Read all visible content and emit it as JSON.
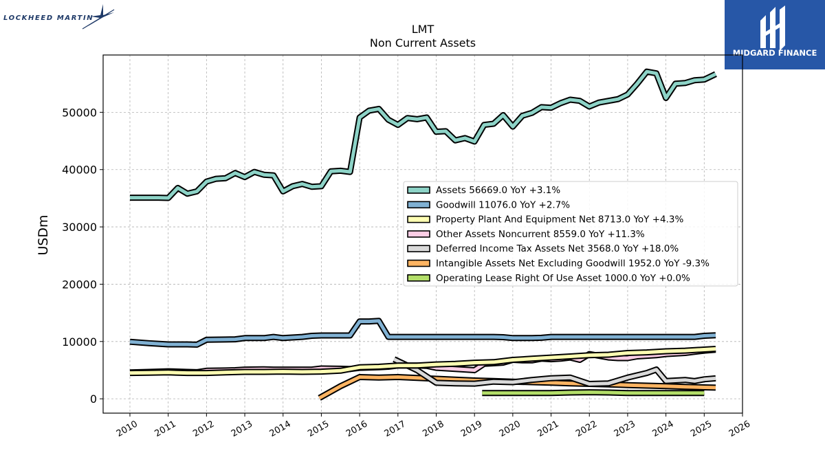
{
  "brand": {
    "left_logo_text": "LOCKHEED MARTIN",
    "right_logo_text": "MIDGARD FINANCE",
    "right_logo_color": "#2757a7"
  },
  "chart_data": {
    "type": "line",
    "title": "LMT",
    "subtitle": "Non Current  Assets",
    "ylabel": "USDm",
    "xlabel": "",
    "xlim": [
      2009.3,
      2026
    ],
    "ylim": [
      -2500,
      60000
    ],
    "grid": true,
    "legend_position": "center-right",
    "x_ticks": [
      "2010",
      "2011",
      "2012",
      "2013",
      "2014",
      "2015",
      "2016",
      "2017",
      "2018",
      "2019",
      "2020",
      "2021",
      "2022",
      "2023",
      "2024",
      "2025",
      "2026"
    ],
    "y_ticks": [
      "0",
      "10000",
      "20000",
      "30000",
      "40000",
      "50000"
    ],
    "series": [
      {
        "name": "Assets",
        "legend": "Assets  56669.0 YoY +3.1%",
        "color": "#8dd3c7",
        "points": [
          [
            2010.0,
            35100
          ],
          [
            2010.25,
            35100
          ],
          [
            2010.5,
            35100
          ],
          [
            2010.75,
            35100
          ],
          [
            2011.0,
            35050
          ],
          [
            2011.25,
            36800
          ],
          [
            2011.5,
            35800
          ],
          [
            2011.75,
            36200
          ],
          [
            2012.0,
            37900
          ],
          [
            2012.25,
            38400
          ],
          [
            2012.5,
            38500
          ],
          [
            2012.75,
            39400
          ],
          [
            2013.0,
            38700
          ],
          [
            2013.25,
            39600
          ],
          [
            2013.5,
            39100
          ],
          [
            2013.75,
            39000
          ],
          [
            2014.0,
            36200
          ],
          [
            2014.25,
            37100
          ],
          [
            2014.5,
            37500
          ],
          [
            2014.75,
            37000
          ],
          [
            2015.0,
            37100
          ],
          [
            2015.25,
            39700
          ],
          [
            2015.5,
            39800
          ],
          [
            2015.75,
            39600
          ],
          [
            2016.0,
            49100
          ],
          [
            2016.25,
            50300
          ],
          [
            2016.5,
            50600
          ],
          [
            2016.75,
            48700
          ],
          [
            2017.0,
            47800
          ],
          [
            2017.25,
            49000
          ],
          [
            2017.5,
            48800
          ],
          [
            2017.75,
            49100
          ],
          [
            2018.0,
            46600
          ],
          [
            2018.25,
            46700
          ],
          [
            2018.5,
            45100
          ],
          [
            2018.75,
            45500
          ],
          [
            2019.0,
            44900
          ],
          [
            2019.25,
            47800
          ],
          [
            2019.5,
            48000
          ],
          [
            2019.75,
            49500
          ],
          [
            2020.0,
            47500
          ],
          [
            2020.25,
            49400
          ],
          [
            2020.5,
            49900
          ],
          [
            2020.75,
            50900
          ],
          [
            2021.0,
            50800
          ],
          [
            2021.25,
            51600
          ],
          [
            2021.5,
            52200
          ],
          [
            2021.75,
            52000
          ],
          [
            2022.0,
            51000
          ],
          [
            2022.25,
            51700
          ],
          [
            2022.5,
            52000
          ],
          [
            2022.75,
            52300
          ],
          [
            2023.0,
            53100
          ],
          [
            2023.25,
            55000
          ],
          [
            2023.5,
            57100
          ],
          [
            2023.75,
            56800
          ],
          [
            2024.0,
            52500
          ],
          [
            2024.25,
            55000
          ],
          [
            2024.5,
            55100
          ],
          [
            2024.75,
            55600
          ],
          [
            2025.0,
            55700
          ],
          [
            2025.3,
            56669
          ]
        ]
      },
      {
        "name": "Goodwill",
        "legend": "Goodwill  11076.0 YoY +2.7%",
        "color": "#80b1d3",
        "points": [
          [
            2010.0,
            9950
          ],
          [
            2010.5,
            9700
          ],
          [
            2011.0,
            9500
          ],
          [
            2011.5,
            9500
          ],
          [
            2011.75,
            9450
          ],
          [
            2012.0,
            10300
          ],
          [
            2012.5,
            10350
          ],
          [
            2012.75,
            10380
          ],
          [
            2013.0,
            10600
          ],
          [
            2013.5,
            10600
          ],
          [
            2013.75,
            10800
          ],
          [
            2014.0,
            10600
          ],
          [
            2014.5,
            10800
          ],
          [
            2014.75,
            11000
          ],
          [
            2015.0,
            11050
          ],
          [
            2015.5,
            11050
          ],
          [
            2015.75,
            11050
          ],
          [
            2016.0,
            13500
          ],
          [
            2016.25,
            13500
          ],
          [
            2016.5,
            13600
          ],
          [
            2016.75,
            10800
          ],
          [
            2017.0,
            10800
          ],
          [
            2017.5,
            10800
          ],
          [
            2018.0,
            10800
          ],
          [
            2018.5,
            10800
          ],
          [
            2019.0,
            10800
          ],
          [
            2019.5,
            10800
          ],
          [
            2019.75,
            10750
          ],
          [
            2020.0,
            10600
          ],
          [
            2020.5,
            10600
          ],
          [
            2020.75,
            10650
          ],
          [
            2021.0,
            10800
          ],
          [
            2021.5,
            10800
          ],
          [
            2022.0,
            10800
          ],
          [
            2022.5,
            10800
          ],
          [
            2023.0,
            10800
          ],
          [
            2023.5,
            10800
          ],
          [
            2024.0,
            10800
          ],
          [
            2024.5,
            10800
          ],
          [
            2024.75,
            10800
          ],
          [
            2025.0,
            11000
          ],
          [
            2025.3,
            11076
          ]
        ]
      },
      {
        "name": "Property Plant And Equipment Net",
        "legend": "Property Plant And Equipment Net  8713.0 YoY +4.3%",
        "color": "#ffffb3",
        "points": [
          [
            2010.0,
            4500
          ],
          [
            2010.5,
            4550
          ],
          [
            2011.0,
            4600
          ],
          [
            2011.5,
            4500
          ],
          [
            2012.0,
            4500
          ],
          [
            2012.5,
            4600
          ],
          [
            2013.0,
            4700
          ],
          [
            2013.5,
            4700
          ],
          [
            2014.0,
            4750
          ],
          [
            2014.5,
            4700
          ],
          [
            2015.0,
            4750
          ],
          [
            2015.5,
            4900
          ],
          [
            2016.0,
            5500
          ],
          [
            2016.5,
            5600
          ],
          [
            2017.0,
            5800
          ],
          [
            2017.5,
            5800
          ],
          [
            2018.0,
            6000
          ],
          [
            2018.5,
            6100
          ],
          [
            2019.0,
            6300
          ],
          [
            2019.5,
            6400
          ],
          [
            2020.0,
            6800
          ],
          [
            2020.5,
            7000
          ],
          [
            2021.0,
            7200
          ],
          [
            2021.5,
            7400
          ],
          [
            2022.0,
            7600
          ],
          [
            2022.5,
            7700
          ],
          [
            2023.0,
            8000
          ],
          [
            2023.5,
            8100
          ],
          [
            2024.0,
            8300
          ],
          [
            2024.5,
            8400
          ],
          [
            2025.0,
            8600
          ],
          [
            2025.3,
            8713
          ]
        ]
      },
      {
        "name": "Other Assets Noncurrent",
        "legend": "Other Assets Noncurrent  8559.0 YoY +11.3%",
        "color": "#fccde5",
        "points": [
          [
            2010.0,
            4600
          ],
          [
            2010.5,
            4700
          ],
          [
            2011.0,
            4800
          ],
          [
            2011.5,
            4700
          ],
          [
            2011.75,
            4650
          ],
          [
            2012.0,
            4900
          ],
          [
            2012.5,
            4950
          ],
          [
            2012.75,
            5000
          ],
          [
            2013.0,
            5100
          ],
          [
            2013.5,
            5150
          ],
          [
            2013.75,
            5100
          ],
          [
            2014.0,
            5100
          ],
          [
            2014.5,
            5100
          ],
          [
            2014.75,
            5100
          ],
          [
            2015.0,
            5300
          ],
          [
            2015.5,
            5250
          ],
          [
            2015.75,
            5200
          ],
          [
            2016.0,
            5400
          ],
          [
            2016.5,
            5500
          ],
          [
            2016.75,
            5600
          ],
          [
            2017.0,
            5800
          ],
          [
            2017.5,
            5800
          ],
          [
            2017.75,
            5750
          ],
          [
            2018.0,
            5400
          ],
          [
            2018.5,
            5200
          ],
          [
            2018.75,
            5100
          ],
          [
            2019.0,
            5000
          ],
          [
            2019.25,
            6100
          ],
          [
            2019.5,
            6200
          ],
          [
            2019.75,
            6300
          ],
          [
            2020.0,
            6800
          ],
          [
            2020.25,
            6700
          ],
          [
            2020.5,
            6700
          ],
          [
            2020.75,
            7000
          ],
          [
            2021.0,
            6900
          ],
          [
            2021.25,
            7000
          ],
          [
            2021.5,
            7200
          ],
          [
            2021.75,
            6800
          ],
          [
            2022.0,
            7800
          ],
          [
            2022.25,
            7500
          ],
          [
            2022.5,
            7200
          ],
          [
            2022.75,
            7100
          ],
          [
            2023.0,
            7100
          ],
          [
            2023.25,
            7400
          ],
          [
            2023.5,
            7500
          ],
          [
            2023.75,
            7600
          ],
          [
            2024.0,
            7800
          ],
          [
            2024.5,
            8000
          ],
          [
            2024.75,
            8200
          ],
          [
            2025.0,
            8400
          ],
          [
            2025.3,
            8559
          ]
        ]
      },
      {
        "name": "Deferred Income Tax Assets Net",
        "legend": "Deferred Income Tax Assets Net  3568.0 YoY +18.0%",
        "color": "#d9d9d9",
        "points": [
          [
            2016.9,
            6900
          ],
          [
            2017.5,
            5000
          ],
          [
            2018.0,
            2800
          ],
          [
            2018.5,
            2700
          ],
          [
            2019.0,
            2650
          ],
          [
            2019.5,
            3000
          ],
          [
            2020.0,
            2900
          ],
          [
            2020.5,
            3300
          ],
          [
            2021.0,
            3600
          ],
          [
            2021.5,
            3700
          ],
          [
            2022.0,
            2600
          ],
          [
            2022.5,
            2700
          ],
          [
            2023.0,
            3700
          ],
          [
            2023.5,
            4500
          ],
          [
            2023.75,
            5100
          ],
          [
            2024.0,
            3100
          ],
          [
            2024.5,
            3300
          ],
          [
            2024.75,
            3100
          ],
          [
            2025.0,
            3400
          ],
          [
            2025.3,
            3568
          ]
        ]
      },
      {
        "name": "Intangible Assets Net Excluding Goodwill",
        "legend": "Intangible Assets Net Excluding Goodwill  1952.0 YoY -9.3%",
        "color": "#fdb462",
        "points": [
          [
            2014.95,
            150
          ],
          [
            2015.5,
            2200
          ],
          [
            2016.0,
            3800
          ],
          [
            2016.5,
            3700
          ],
          [
            2017.0,
            3800
          ],
          [
            2017.5,
            3650
          ],
          [
            2018.0,
            3500
          ],
          [
            2018.5,
            3350
          ],
          [
            2019.0,
            3200
          ],
          [
            2019.5,
            3100
          ],
          [
            2020.0,
            3000
          ],
          [
            2020.5,
            2900
          ],
          [
            2021.0,
            2800
          ],
          [
            2021.5,
            2700
          ],
          [
            2022.0,
            2600
          ],
          [
            2022.5,
            2500
          ],
          [
            2023.0,
            2400
          ],
          [
            2023.5,
            2300
          ],
          [
            2024.0,
            2200
          ],
          [
            2024.5,
            2100
          ],
          [
            2025.0,
            2000
          ],
          [
            2025.3,
            1952
          ]
        ]
      },
      {
        "name": "Operating Lease Right Of Use Asset",
        "legend": "Operating Lease Right Of Use Asset  1000.0 YoY +0.0%",
        "color": "#b3de69",
        "points": [
          [
            2019.2,
            1000
          ],
          [
            2019.5,
            1000
          ],
          [
            2020.0,
            1000
          ],
          [
            2020.5,
            1000
          ],
          [
            2021.0,
            1000
          ],
          [
            2021.5,
            1100
          ],
          [
            2022.0,
            1150
          ],
          [
            2022.5,
            1100
          ],
          [
            2023.0,
            1000
          ],
          [
            2023.5,
            1000
          ],
          [
            2024.0,
            1000
          ],
          [
            2024.5,
            1000
          ],
          [
            2025.0,
            1000
          ]
        ]
      }
    ]
  }
}
